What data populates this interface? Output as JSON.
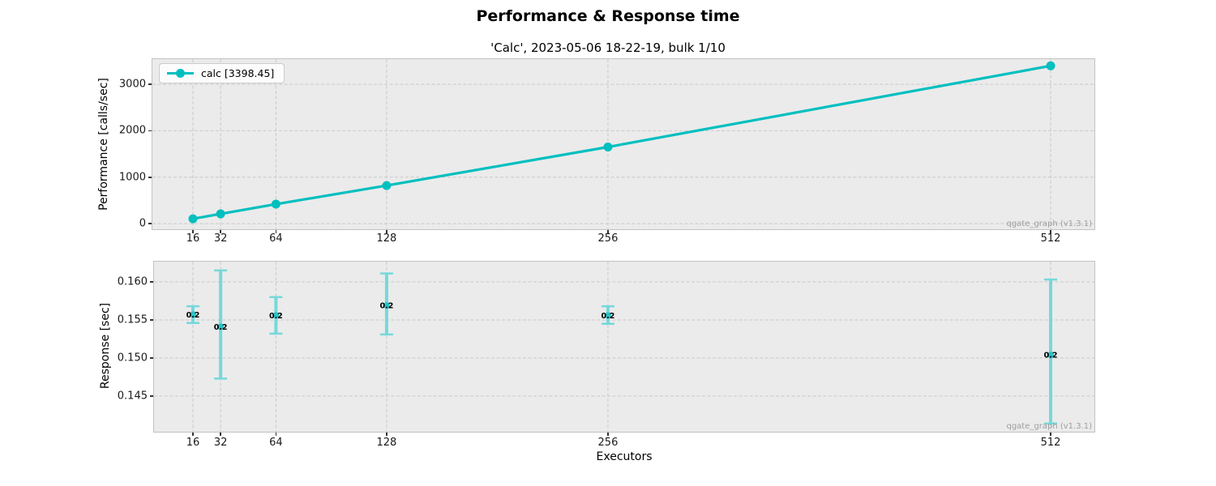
{
  "title": "Performance & Response time",
  "subtitle": "'Calc', 2023-05-06 18-22-19, bulk 1/10",
  "watermark": "qgate_graph (v1.3.1)",
  "xlabel": "Executors",
  "colors": {
    "accent": "#00bfbf",
    "errorbar_light": "#76d8da",
    "errorbar_marker": "#27c4c8",
    "grid": "#c9c9c9",
    "plot_bg": "#ebebeb",
    "watermark_gray": "#9e9e9e"
  },
  "chart_data": [
    {
      "type": "line",
      "name": "performance",
      "ylabel": "Performance [calls/sec]",
      "x": [
        16,
        32,
        64,
        128,
        256,
        512
      ],
      "series": [
        {
          "name": "calc [3398.45]",
          "values": [
            105,
            210,
            420,
            820,
            1650,
            3398.45
          ]
        }
      ],
      "xticks": [
        16,
        32,
        64,
        128,
        256,
        512
      ],
      "yticks": [
        0,
        1000,
        2000,
        3000
      ],
      "xlim": [
        -8,
        537
      ],
      "ylim": [
        -120,
        3540
      ],
      "grid": true,
      "legend_position": "upper-left"
    },
    {
      "type": "errorbar",
      "name": "response",
      "ylabel": "Response [sec]",
      "xlabel": "Executors",
      "x": [
        16,
        32,
        64,
        128,
        256,
        512
      ],
      "centers": [
        0.1557,
        0.1541,
        0.1556,
        0.1569,
        0.1556,
        0.1504
      ],
      "lows": [
        0.1546,
        0.1473,
        0.1532,
        0.1531,
        0.1545,
        0.1414
      ],
      "highs": [
        0.1568,
        0.1615,
        0.158,
        0.1611,
        0.1568,
        0.1603
      ],
      "point_labels": [
        "0.2",
        "0.2",
        "0.2",
        "0.2",
        "0.2",
        "0.2"
      ],
      "xticks": [
        16,
        32,
        64,
        128,
        256,
        512
      ],
      "yticks": [
        0.145,
        0.15,
        0.155,
        0.16
      ],
      "xlim": [
        -8,
        537
      ],
      "ylim": [
        0.1402,
        0.1627
      ],
      "grid": true
    }
  ]
}
